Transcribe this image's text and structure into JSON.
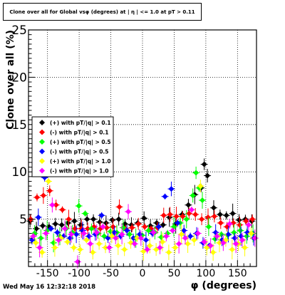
{
  "chart_data": {
    "type": "scatter",
    "title": "Clone  over all for Global vsφ (degrees) at |  η | <= 1.0 at pT > 0.11",
    "xlabel": "φ (degrees)",
    "ylabel": "Clone  over all (%)",
    "xlim": [
      -180,
      180
    ],
    "ylim": [
      0,
      25
    ],
    "x_ticks": [
      -150,
      -100,
      -50,
      0,
      50,
      100,
      150
    ],
    "y_ticks": [
      5,
      10,
      15,
      20,
      25
    ],
    "grid": true,
    "legend_position": "middle-left",
    "series": [
      {
        "name": "(+) with pT/|q| > 0.1",
        "color": "#000000",
        "x": [
          -175,
          -165,
          -155,
          -145,
          -135,
          -125,
          -115,
          -105,
          -95,
          -85,
          -75,
          -65,
          -55,
          -45,
          -35,
          -25,
          -15,
          -5,
          5,
          15,
          25,
          35,
          45,
          55,
          65,
          75,
          85,
          95,
          100,
          105,
          115,
          125,
          135,
          145,
          155,
          165,
          175
        ],
        "y": [
          4.8,
          4.0,
          4.3,
          4.2,
          4.5,
          4.4,
          4.6,
          4.8,
          4.4,
          5.0,
          5.0,
          4.7,
          4.6,
          4.9,
          5.0,
          4.5,
          4.4,
          4.6,
          5.1,
          4.3,
          4.6,
          4.4,
          5.2,
          4.5,
          5.5,
          6.5,
          7.6,
          8.3,
          10.8,
          9.6,
          6.2,
          5.5,
          5.4,
          5.6,
          4.9,
          5.0,
          4.8
        ]
      },
      {
        "name": "(-) with pT/|q| > 0.1",
        "color": "#ff0000",
        "x": [
          -175,
          -165,
          -155,
          -145,
          -135,
          -125,
          -115,
          -105,
          -95,
          -85,
          -75,
          -65,
          -55,
          -45,
          -35,
          -25,
          -15,
          -5,
          5,
          15,
          25,
          35,
          45,
          55,
          65,
          75,
          85,
          95,
          105,
          115,
          125,
          135,
          145,
          155,
          165,
          175
        ],
        "y": [
          5.0,
          7.3,
          7.5,
          8.0,
          6.5,
          6.0,
          5.0,
          4.0,
          4.0,
          4.0,
          4.2,
          4.0,
          4.1,
          4.2,
          6.3,
          4.0,
          4.1,
          4.5,
          4.2,
          4.0,
          4.1,
          5.4,
          5.5,
          5.3,
          5.3,
          5.6,
          5.5,
          5.0,
          5.2,
          5.3,
          4.6,
          4.2,
          4.6,
          4.4,
          4.8,
          5.0
        ]
      },
      {
        "name": "(+) with pT/|q| > 0.5",
        "color": "#00ff00",
        "x": [
          -170,
          -160,
          -150,
          -140,
          -130,
          -120,
          -110,
          -100,
          -90,
          -80,
          -70,
          -60,
          -50,
          -40,
          -30,
          -20,
          -10,
          0,
          10,
          20,
          30,
          40,
          50,
          60,
          70,
          80,
          85,
          90,
          95,
          105,
          115,
          125,
          135,
          145,
          155,
          165,
          175
        ],
        "y": [
          3.5,
          3.0,
          3.8,
          2.5,
          3.2,
          4.0,
          3.6,
          6.4,
          5.6,
          4.0,
          3.5,
          3.2,
          3.7,
          3.6,
          4.1,
          3.4,
          3.0,
          3.3,
          3.8,
          3.6,
          3.1,
          3.5,
          4.2,
          4.6,
          5.0,
          7.5,
          9.9,
          8.3,
          7.0,
          4.2,
          2.9,
          3.4,
          3.3,
          3.6,
          3.8,
          3.2,
          3.5
        ]
      },
      {
        "name": "(-) with pT/|q| > 0.5",
        "color": "#0000ff",
        "x": [
          -175,
          -165,
          -155,
          -145,
          -135,
          -125,
          -115,
          -105,
          -95,
          -85,
          -75,
          -65,
          -55,
          -45,
          -35,
          -25,
          -15,
          -5,
          5,
          15,
          25,
          35,
          45,
          55,
          65,
          75,
          85,
          95,
          105,
          115,
          125,
          135,
          145,
          155,
          165,
          175
        ],
        "y": [
          2.8,
          5.2,
          9.4,
          4.0,
          3.6,
          3.2,
          3.0,
          3.4,
          3.8,
          3.2,
          3.4,
          5.4,
          3.0,
          3.6,
          3.2,
          3.8,
          3.0,
          3.4,
          2.8,
          3.5,
          4.2,
          7.4,
          8.2,
          4.6,
          3.8,
          3.2,
          3.5,
          2.5,
          2.2,
          3.6,
          2.8,
          3.4,
          3.0,
          3.2,
          3.6,
          3.0
        ]
      },
      {
        "name": "(+) with pT/|q| > 1.0",
        "color": "#ffff00",
        "x": [
          -170,
          -160,
          -150,
          -140,
          -130,
          -120,
          -110,
          -100,
          -90,
          -80,
          -70,
          -60,
          -50,
          -40,
          -30,
          -20,
          -10,
          0,
          10,
          20,
          30,
          40,
          50,
          60,
          70,
          80,
          90,
          100,
          110,
          120,
          130,
          140,
          150,
          160,
          170
        ],
        "y": [
          2.5,
          1.5,
          9.0,
          2.0,
          3.0,
          2.6,
          2.0,
          1.8,
          2.8,
          1.5,
          2.4,
          2.0,
          3.2,
          2.2,
          1.8,
          2.5,
          3.0,
          1.6,
          2.2,
          1.8,
          2.6,
          1.5,
          2.0,
          3.4,
          2.4,
          2.8,
          8.5,
          2.0,
          1.5,
          2.5,
          2.8,
          1.8,
          2.4,
          2.0,
          3.5
        ]
      },
      {
        "name": "(-) with pT/|q| > 1.0",
        "color": "#ff00ff",
        "x": [
          -175,
          -165,
          -155,
          -145,
          -135,
          -125,
          -115,
          -105,
          -95,
          -85,
          -75,
          -65,
          -55,
          -45,
          -35,
          -25,
          -15,
          -5,
          5,
          15,
          25,
          35,
          45,
          55,
          65,
          75,
          85,
          95,
          105,
          115,
          125,
          135,
          145,
          155,
          165,
          175
        ],
        "y": [
          3.2,
          2.0,
          3.5,
          6.5,
          2.8,
          4.0,
          3.4,
          0.5,
          3.5,
          2.4,
          3.6,
          4.2,
          2.0,
          3.0,
          3.4,
          5.8,
          2.4,
          3.0,
          1.8,
          3.6,
          2.0,
          3.2,
          3.8,
          2.4,
          3.0,
          6.0,
          3.5,
          2.6,
          2.2,
          3.2,
          2.5,
          4.5,
          2.4,
          2.8,
          4.4,
          3.0
        ]
      }
    ]
  },
  "footer": {
    "date": "Wed May 16 12:32:18 2018"
  }
}
